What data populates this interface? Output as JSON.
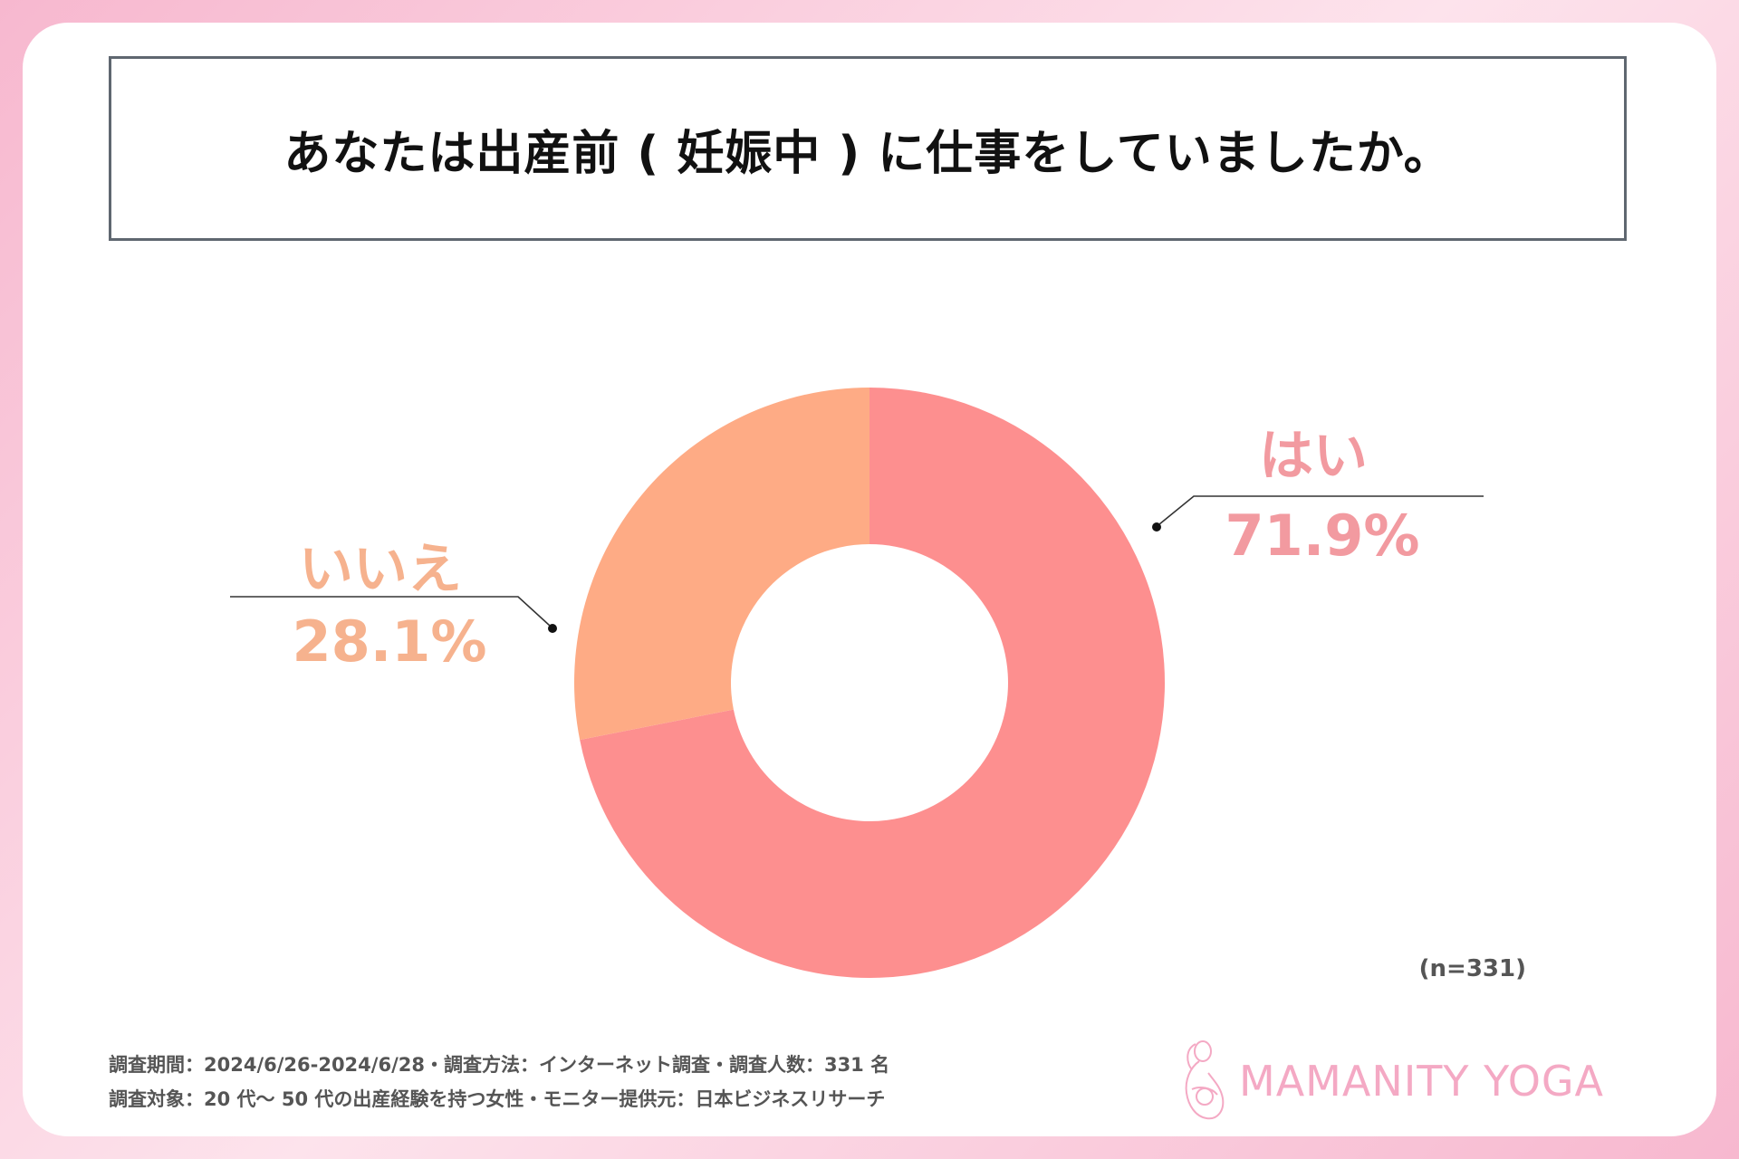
{
  "title": "あなたは出産前 ( 妊娠中 ) に仕事をしていましたか。",
  "chart_data": {
    "type": "pie",
    "donut": true,
    "title": "あなたは出産前 ( 妊娠中 ) に仕事をしていましたか。",
    "categories": [
      "はい",
      "いいえ"
    ],
    "values": [
      71.9,
      28.1
    ],
    "value_labels": [
      "71.9%",
      "28.1%"
    ],
    "colors": [
      "#fd8f8f",
      "#feab85"
    ],
    "legend": "none",
    "sample_size": "(n=331)"
  },
  "labels": {
    "yes_name": "はい",
    "yes_pct": "71.9%",
    "no_name": "いいえ",
    "no_pct": "28.1%",
    "n": "(n=331)"
  },
  "footer": {
    "line1": "調査期間：2024/6/26-2024/6/28・調査方法：インターネット調査・調査人数：331 名",
    "line2": "調査対象：20 代～ 50 代の出産経験を持つ女性・モニター提供元：日本ビジネスリサーチ"
  },
  "logo": {
    "text": "MAMANITY YOGA",
    "icon": "mother-baby-icon",
    "color": "#f4a9c4"
  }
}
